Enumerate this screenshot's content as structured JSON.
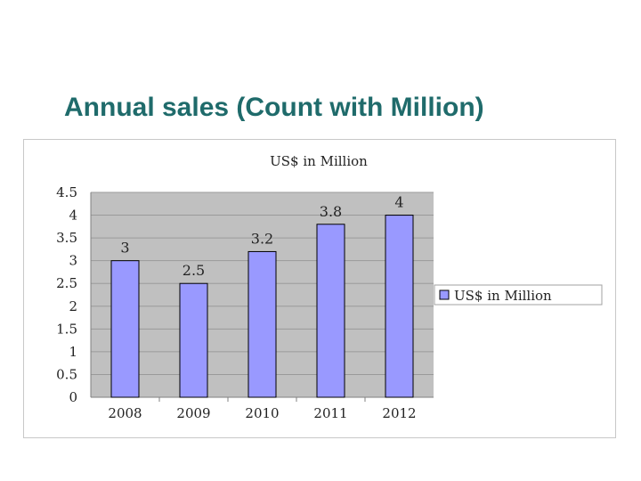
{
  "slide": {
    "title": "Annual sales (Count with Million)"
  },
  "chart_data": {
    "type": "bar",
    "title": "US$ in Million",
    "categories": [
      "2008",
      "2009",
      "2010",
      "2011",
      "2012"
    ],
    "series": [
      {
        "name": "US$ in Million",
        "values": [
          3,
          2.5,
          3.2,
          3.8,
          4
        ],
        "labels": [
          "3",
          "2.5",
          "3.2",
          "3.8",
          "4"
        ]
      }
    ],
    "y_ticks": [
      "0",
      "0.5",
      "1",
      "1.5",
      "2",
      "2.5",
      "3",
      "3.5",
      "4",
      "4.5"
    ],
    "ylim": [
      0,
      4.5
    ],
    "grid": true,
    "legend_position": "right",
    "colors": {
      "bar": "#9999ff",
      "bar_border": "#000000",
      "plot_background": "#c0c0c0",
      "title_text": "#1f6b6b"
    }
  }
}
